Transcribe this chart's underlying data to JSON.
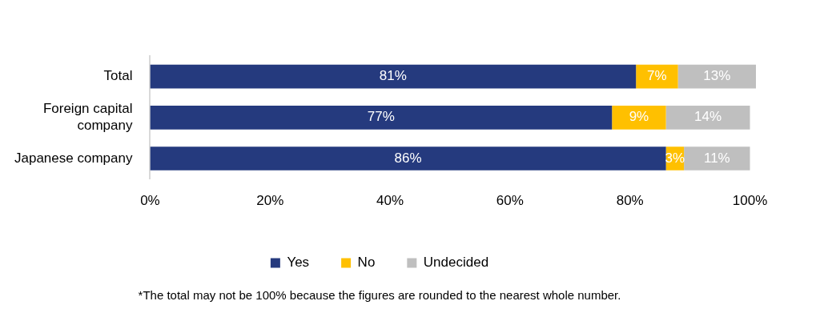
{
  "chart_data": {
    "type": "bar",
    "orientation": "horizontal",
    "stacked": true,
    "categories": [
      "Total",
      "Foreign capital company",
      "Japanese company"
    ],
    "series": [
      {
        "name": "Yes",
        "color": "#253a7e",
        "values": [
          81,
          77,
          86
        ],
        "value_labels": [
          "81%",
          "77%",
          "86%"
        ]
      },
      {
        "name": "No",
        "color": "#ffc000",
        "values": [
          7,
          9,
          3
        ],
        "value_labels": [
          "7%",
          "9%",
          "3%"
        ]
      },
      {
        "name": "Undecided",
        "color": "#bfbfbf",
        "values": [
          13,
          14,
          11
        ],
        "value_labels": [
          "13%",
          "14%",
          "11%"
        ]
      }
    ],
    "xlim": [
      0,
      101
    ],
    "xticks": [
      {
        "value": 0,
        "label": "0%"
      },
      {
        "value": 20,
        "label": "20%"
      },
      {
        "value": 40,
        "label": "40%"
      },
      {
        "value": 60,
        "label": "60%"
      },
      {
        "value": 80,
        "label": "80%"
      },
      {
        "value": 100,
        "label": "100%"
      }
    ],
    "grid": false,
    "legend": "bottom",
    "annotations": [
      "*The total may not be 100% because the figures are rounded to the nearest whole number."
    ]
  }
}
